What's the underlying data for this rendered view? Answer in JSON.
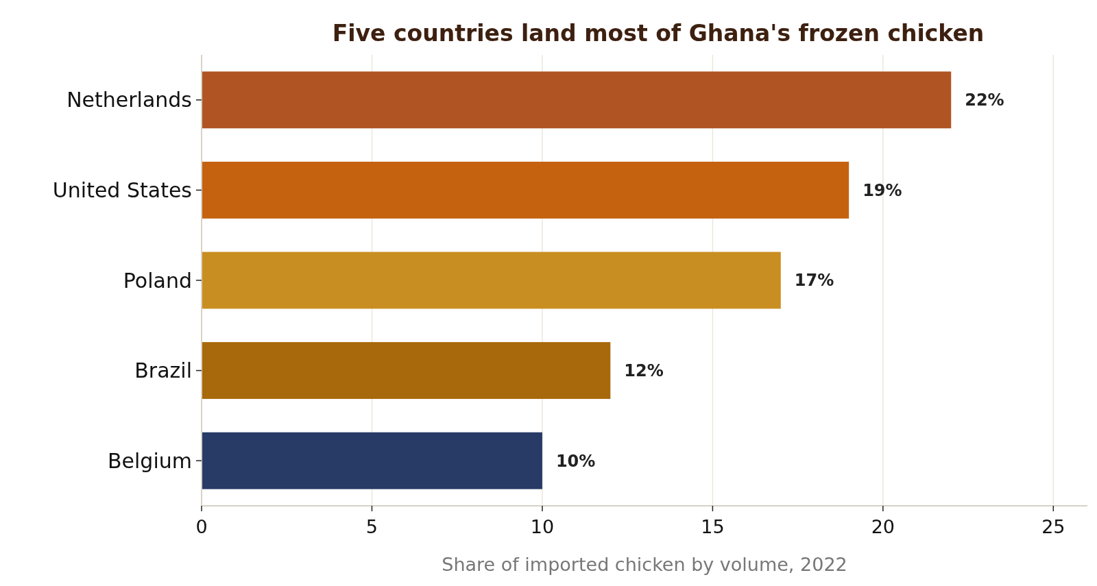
{
  "chart_data": {
    "type": "bar",
    "orientation": "horizontal",
    "title": "Five countries land most of Ghana's frozen chicken",
    "xlabel": "Share of imported chicken by volume, 2022",
    "categories": [
      "Netherlands",
      "United States",
      "Poland",
      "Brazil",
      "Belgium"
    ],
    "values": [
      22,
      19,
      17,
      12,
      10
    ],
    "colors": [
      "#b05423",
      "#c46210",
      "#c98e22",
      "#a8690c",
      "#283a66"
    ],
    "value_labels": [
      "22%",
      "19%",
      "17%",
      "12%",
      "10%"
    ],
    "xlim": [
      0,
      26
    ],
    "xticks": [
      0,
      5,
      10,
      15,
      20,
      25
    ],
    "grid": "x"
  }
}
